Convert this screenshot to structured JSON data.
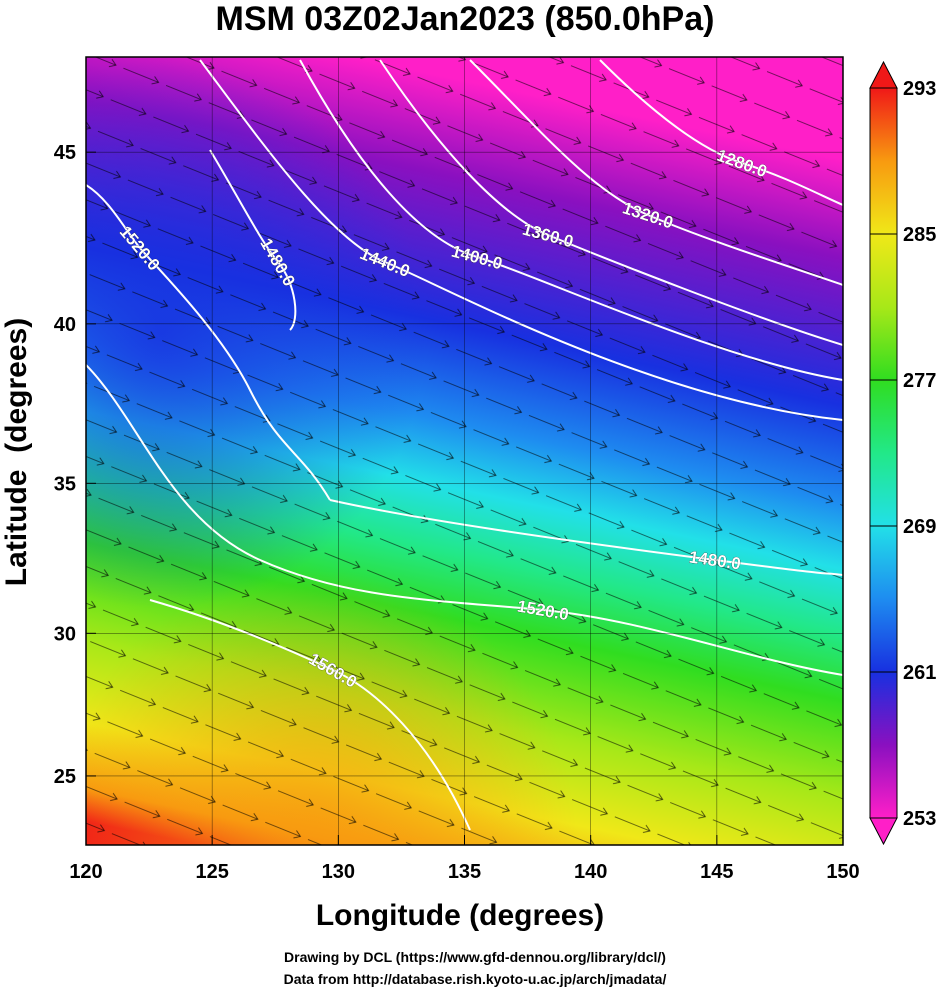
{
  "chart_data": {
    "type": "map",
    "title": "MSM 03Z02Jan2023 (850.0hPa)",
    "projection": "mercator",
    "xlabel": "Longitude (degrees)",
    "ylabel": "Latitude  (degrees)",
    "xlim": [
      120,
      150
    ],
    "ylim": [
      22.5,
      47.6
    ],
    "xticks": [
      120,
      125,
      130,
      135,
      140,
      145,
      150
    ],
    "yticks": [
      25,
      30,
      35,
      40,
      45
    ],
    "grid": true,
    "contours": [
      {
        "value": 1280,
        "label": "1280.0"
      },
      {
        "value": 1320,
        "label": "1320.0"
      },
      {
        "value": 1360,
        "label": "1360.0"
      },
      {
        "value": 1400,
        "label": "1400.0"
      },
      {
        "value": 1440,
        "label": "1440.0"
      },
      {
        "value": 1480,
        "label": "1480.0"
      },
      {
        "value": 1520,
        "label": "1520.0"
      },
      {
        "value": 1480,
        "label": "1480.0"
      },
      {
        "value": 1520,
        "label": "1520.0"
      },
      {
        "value": 1560,
        "label": "1560.0"
      }
    ],
    "colorbar": {
      "lim": [
        253,
        293
      ],
      "ticks": [
        253,
        261,
        269,
        277,
        285,
        293
      ],
      "colors": [
        "#ff1fc8",
        "#8a10c0",
        "#1830e0",
        "#1e8cf0",
        "#22e0e8",
        "#22e888",
        "#30dd20",
        "#a8e818",
        "#f0e818",
        "#f89a10",
        "#f01818"
      ]
    },
    "credits": [
      "Drawing by DCL (https://www.gfd-dennou.org/library/dcl/)",
      "Data from http://database.rish.kyoto-u.ac.jp/arch/jmadata/"
    ]
  }
}
